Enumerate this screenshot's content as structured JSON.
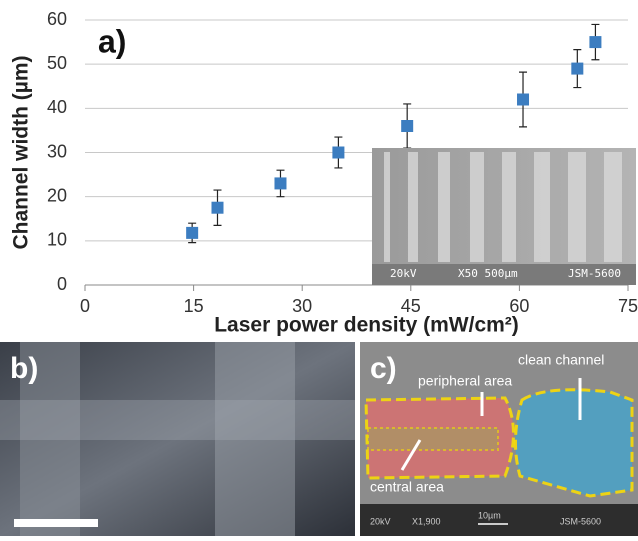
{
  "chart_data": {
    "type": "scatter",
    "panel_label": "a)",
    "x_label": "Laser power density  (mW/cm²)",
    "y_label": "Channel width  (µm)",
    "x": [
      14.8,
      18.3,
      27,
      35,
      44.5,
      60.5,
      68,
      70.5
    ],
    "values": [
      11.8,
      17.5,
      23,
      30,
      36,
      42,
      49,
      55
    ],
    "errors": [
      2.2,
      4,
      3,
      3.5,
      5,
      6.2,
      4.3,
      4
    ],
    "color": "#3c7dc0",
    "xlim": [
      0,
      75
    ],
    "xticks": [
      0,
      15,
      30,
      45,
      60,
      75
    ],
    "ylim": [
      0,
      60
    ],
    "yticks": [
      0,
      10,
      20,
      30,
      40,
      50,
      60
    ],
    "grid": true,
    "inset": {
      "labels": [
        "20kV",
        "X50 500µm",
        "JSM-5600"
      ]
    }
  },
  "panel_b": {
    "label": "b)"
  },
  "panel_c": {
    "label": "c)",
    "annotations": [
      "peripheral area",
      "clean channel",
      "central area"
    ],
    "scale_text": [
      "20kV",
      "X1,900",
      "10µm",
      "JSM-5600"
    ]
  }
}
